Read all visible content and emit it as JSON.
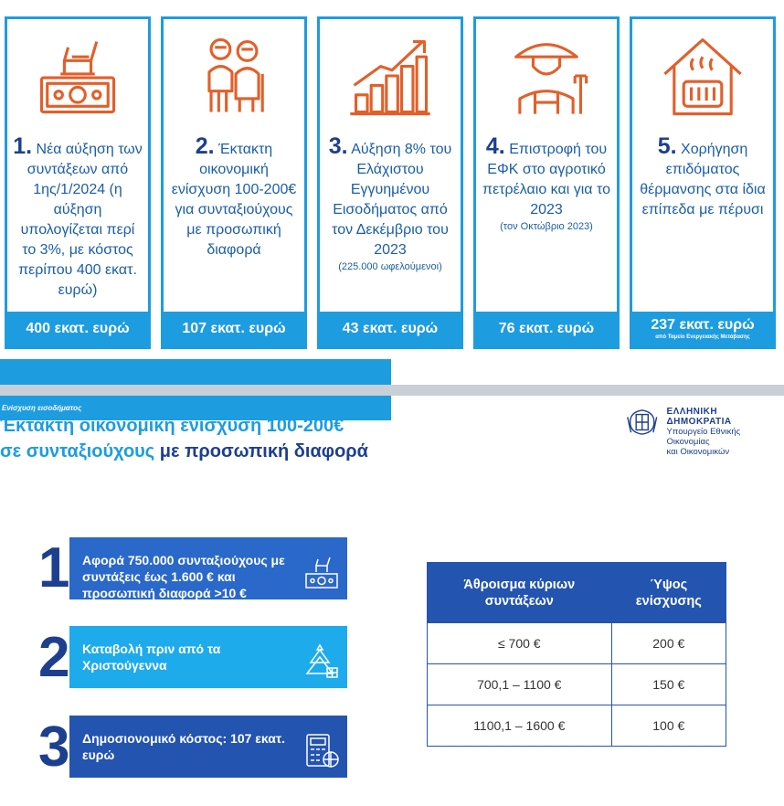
{
  "cards": [
    {
      "num": "1.",
      "text": "Νέα αύξηση των συντάξεων από 1ης/1/2024 (η αύξηση υπολογίζεται περί το 3%, με κόστος περίπου 400 εκατ. ευρώ)",
      "note": "",
      "cost": "400 εκατ. ευρώ",
      "cost_sub": "",
      "icon": "money-chair-icon"
    },
    {
      "num": "2.",
      "text": "Έκτακτη οικονομική ενίσχυση 100-200€ για συνταξιούχους με προσωπική διαφορά",
      "note": "",
      "cost": "107 εκατ. ευρώ",
      "cost_sub": "",
      "icon": "elderly-couple-icon"
    },
    {
      "num": "3.",
      "text": "Αύξηση 8% του Ελάχιστου Εγγυημένου Εισοδήματος από τον Δεκέμβριο του 2023",
      "note": "(225.000 ωφελούμενοι)",
      "cost": "43 εκατ. ευρώ",
      "cost_sub": "",
      "icon": "growth-chart-icon"
    },
    {
      "num": "4.",
      "text": "Επιστροφή του ΕΦΚ στο αγροτικό πετρέλαιο και για το 2023",
      "note": "(τον Οκτώβριο 2023)",
      "cost": "76 εκατ. ευρώ",
      "cost_sub": "",
      "icon": "farmer-icon"
    },
    {
      "num": "5.",
      "text": "Χορήγηση επιδόματος θέρμανσης στα ίδια επίπεδα με πέρυσι",
      "note": "",
      "cost": "237 εκατ. ευρώ",
      "cost_sub": "από Ταμείο Ενεργειακής Μετάβασης",
      "icon": "house-heater-icon"
    }
  ],
  "section_label": "Ενίσχυση εισοδήματος",
  "ministry": {
    "line1": "ΕΛΛΗΝΙΚΗ ΔΗΜΟΚΡΑΤΙΑ",
    "line2": "Υπουργείο Εθνικής Οικονομίας",
    "line3": "και Οικονομικών"
  },
  "headline": {
    "line1": "Έκτακτη οικονομική ενίσχυση 100-200€",
    "line2a": "σε συνταξιούχους",
    "line2b": "με προσωπική διαφορά"
  },
  "items": [
    {
      "num": "1",
      "text": "Αφορά 750.000 συνταξιούχους με συντάξεις έως 1.600 € και προσωπική διαφορά >10 €",
      "icon": "money-chair-icon"
    },
    {
      "num": "2",
      "text": "Καταβολή πριν από τα Χριστούγεννα",
      "icon": "christmas-tree-icon"
    },
    {
      "num": "3",
      "text": "Δημοσιονομικό κόστος: 107 εκατ. ευρώ",
      "icon": "calculator-icon"
    }
  ],
  "table": {
    "headers": [
      "Άθροισμα κύριων συντάξεων",
      "Ύψος ενίσχυσης"
    ],
    "rows": [
      [
        "≤ 700 €",
        "200 €"
      ],
      [
        "700,1 – 1100 €",
        "150 €"
      ],
      [
        "1100,1 – 1600 €",
        "100 €"
      ]
    ]
  },
  "colors": {
    "accent": "#1d9ce0",
    "navy": "#1d3f8f",
    "blue": "#2a68c9"
  }
}
